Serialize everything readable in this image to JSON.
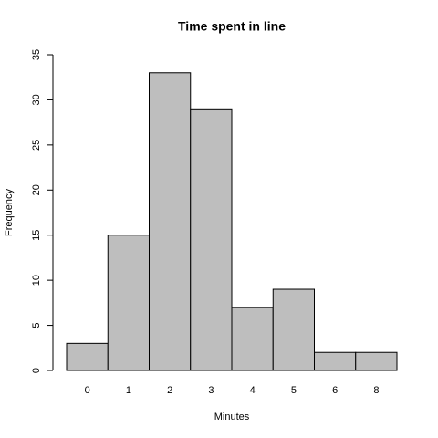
{
  "chart_data": {
    "type": "bar",
    "title": "Time spent in line",
    "x_label": "Minutes",
    "y_label": "Frequency",
    "categories": [
      "0",
      "1",
      "2",
      "3",
      "4",
      "5",
      "6",
      "8"
    ],
    "values": [
      3,
      15,
      33,
      29,
      7,
      9,
      2,
      2
    ],
    "color": "#bebebe",
    "ylim": [
      0,
      35
    ],
    "yticks": [
      0,
      5,
      10,
      15,
      20,
      25,
      30,
      35
    ],
    "grid": false
  }
}
